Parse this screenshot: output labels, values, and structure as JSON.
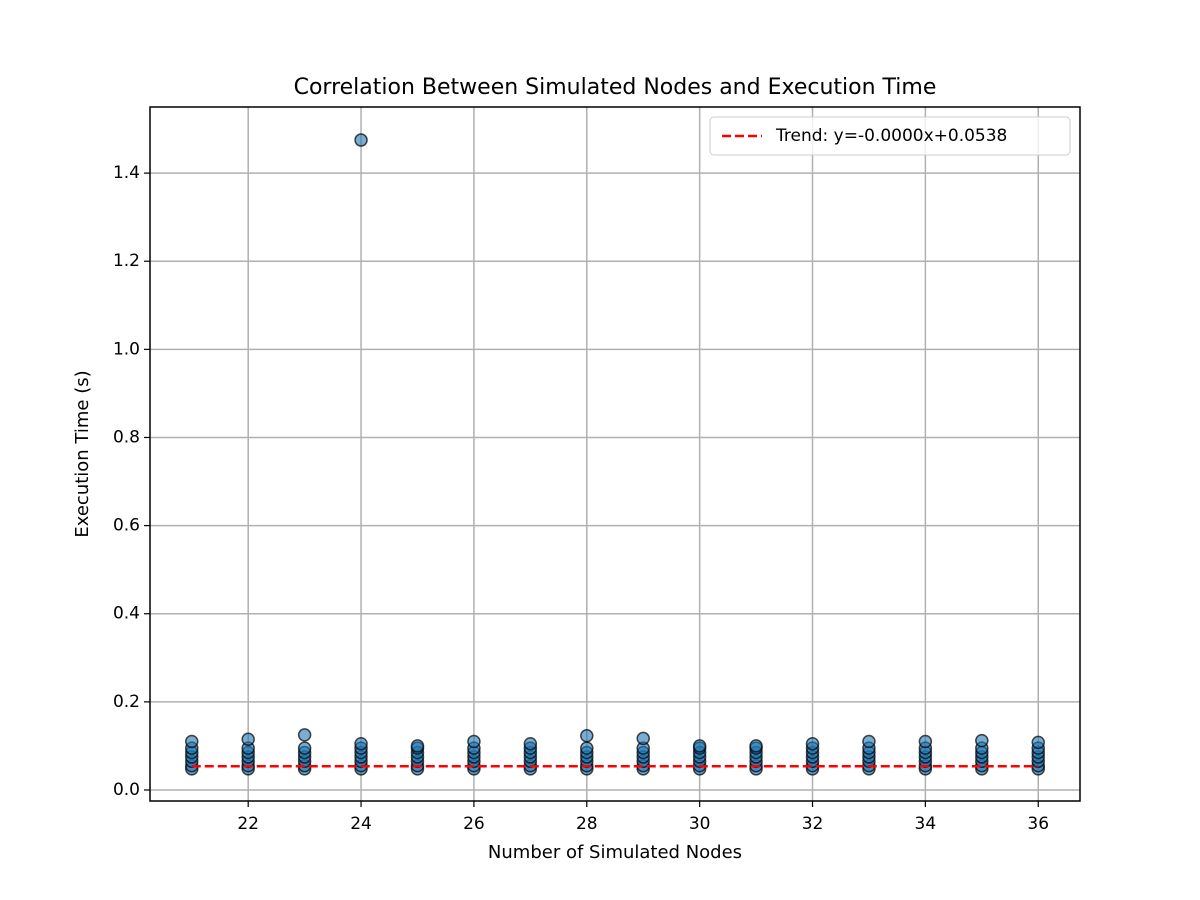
{
  "chart_data": {
    "type": "scatter",
    "title": "Correlation Between Simulated Nodes and Execution Time",
    "x_label": "Number of Simulated Nodes",
    "y_label": "Execution Time (s)",
    "xlim": [
      20.26,
      36.74
    ],
    "ylim": [
      -0.025,
      1.55
    ],
    "xticks": [
      22,
      24,
      26,
      28,
      30,
      32,
      34,
      36
    ],
    "yticks": [
      {
        "value": 0,
        "label": "0.0"
      },
      0.2,
      0.4,
      0.6,
      0.8,
      {
        "value": 1,
        "label": "1.0"
      },
      1.2,
      1.4
    ],
    "grid": true,
    "legend": "upper right",
    "series": [
      {
        "type": "scatter",
        "color": "#1f77b4",
        "x": [
          21,
          21,
          21,
          21,
          21,
          21,
          21,
          22,
          22,
          22,
          22,
          22,
          22,
          22,
          23,
          23,
          23,
          23,
          23,
          23,
          23,
          24,
          24,
          24,
          24,
          24,
          24,
          24,
          24,
          25,
          25,
          25,
          25,
          25,
          25,
          25,
          26,
          26,
          26,
          26,
          26,
          26,
          26,
          27,
          27,
          27,
          27,
          27,
          27,
          27,
          28,
          28,
          28,
          28,
          28,
          28,
          28,
          29,
          29,
          29,
          29,
          29,
          29,
          29,
          30,
          30,
          30,
          30,
          30,
          30,
          30,
          31,
          31,
          31,
          31,
          31,
          31,
          31,
          32,
          32,
          32,
          32,
          32,
          32,
          32,
          33,
          33,
          33,
          33,
          33,
          33,
          33,
          34,
          34,
          34,
          34,
          34,
          34,
          34,
          35,
          35,
          35,
          35,
          35,
          35,
          35,
          36,
          36,
          36,
          36,
          36,
          36,
          36
        ],
        "values": [
          0.048,
          0.055,
          0.065,
          0.075,
          0.085,
          0.095,
          0.11,
          0.048,
          0.055,
          0.065,
          0.075,
          0.085,
          0.095,
          0.115,
          0.048,
          0.055,
          0.065,
          0.075,
          0.085,
          0.095,
          0.125,
          0.048,
          0.055,
          0.065,
          0.075,
          0.085,
          0.095,
          0.105,
          1.475,
          0.048,
          0.055,
          0.065,
          0.075,
          0.085,
          0.095,
          0.1,
          0.048,
          0.055,
          0.065,
          0.075,
          0.085,
          0.095,
          0.11,
          0.048,
          0.055,
          0.065,
          0.075,
          0.085,
          0.095,
          0.105,
          0.048,
          0.055,
          0.065,
          0.075,
          0.085,
          0.095,
          0.123,
          0.048,
          0.055,
          0.065,
          0.075,
          0.085,
          0.095,
          0.117,
          0.048,
          0.055,
          0.065,
          0.075,
          0.085,
          0.095,
          0.1,
          0.048,
          0.055,
          0.065,
          0.075,
          0.085,
          0.095,
          0.1,
          0.048,
          0.055,
          0.065,
          0.075,
          0.085,
          0.095,
          0.105,
          0.048,
          0.055,
          0.065,
          0.075,
          0.085,
          0.095,
          0.11,
          0.048,
          0.055,
          0.065,
          0.075,
          0.085,
          0.095,
          0.11,
          0.048,
          0.055,
          0.065,
          0.075,
          0.085,
          0.095,
          0.112,
          0.048,
          0.055,
          0.065,
          0.075,
          0.085,
          0.095,
          0.108
        ]
      },
      {
        "type": "line",
        "name": "Trend: y=-0.0000x+0.0538",
        "color": "#ff0000",
        "linestyle": "dashed",
        "x": [
          21,
          36
        ],
        "values": [
          0.0538,
          0.0538
        ]
      }
    ]
  }
}
